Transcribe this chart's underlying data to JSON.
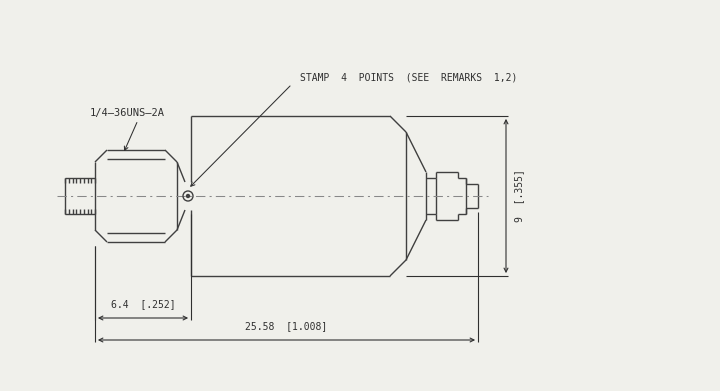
{
  "bg_color": "#f0f0eb",
  "line_color": "#404040",
  "text_color": "#303030",
  "title_label": "1/4–36UNS–2A",
  "stamp_label": "STAMP  4  POINTS  (SEE  REMARKS  1,2)",
  "dim1_label": "6.4  [.252]",
  "dim2_label": "25.58  [1.008]",
  "dim3_label": "9  [.355]",
  "font_size": 7.0,
  "lw": 1.0
}
